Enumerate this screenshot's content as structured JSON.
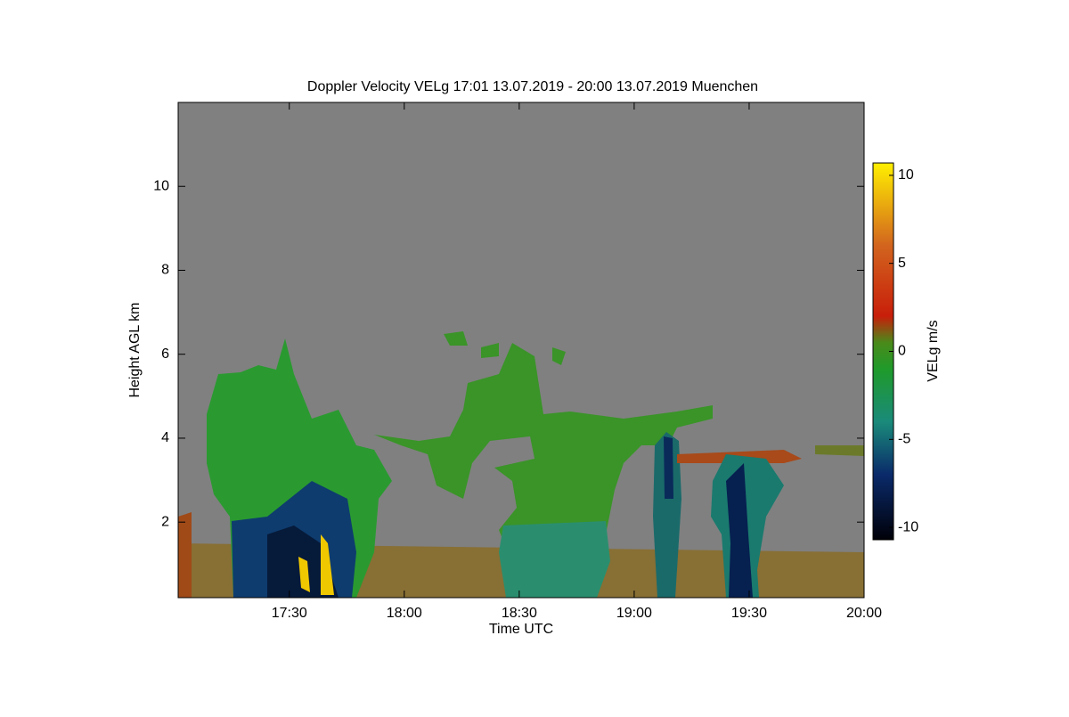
{
  "chart_data": {
    "type": "heatmap",
    "title": "Doppler Velocity VELg   17:01 13.07.2019 - 20:00 13.07.2019 Muenchen",
    "x_label": "Time UTC",
    "y_label": "Height AGL km",
    "colorbar_label": "VELg m/s",
    "xlim": [
      17.0167,
      20
    ],
    "ylim": [
      0.2,
      12
    ],
    "xticks": [
      {
        "value": 17.5,
        "label": "17:30"
      },
      {
        "value": 18,
        "label": "18:00"
      },
      {
        "value": 18.5,
        "label": "18:30"
      },
      {
        "value": 19,
        "label": "19:00"
      },
      {
        "value": 19.5,
        "label": "19:30"
      },
      {
        "value": 20,
        "label": "20:00"
      }
    ],
    "yticks": [
      2,
      4,
      6,
      8,
      10
    ],
    "clim": [
      -10.7,
      10.7
    ],
    "cticks": [
      -10,
      -5,
      0,
      5,
      10
    ],
    "background": "#808080",
    "colorscale": [
      [
        -10.7,
        "#000008"
      ],
      [
        -7,
        "#0a2a6a"
      ],
      [
        -4,
        "#1a8a7a"
      ],
      [
        -1,
        "#1f9a2a"
      ],
      [
        0.5,
        "#4a8a1a"
      ],
      [
        2,
        "#c81e0a"
      ],
      [
        6,
        "#d2641e"
      ],
      [
        10.7,
        "#fff000"
      ]
    ]
  }
}
